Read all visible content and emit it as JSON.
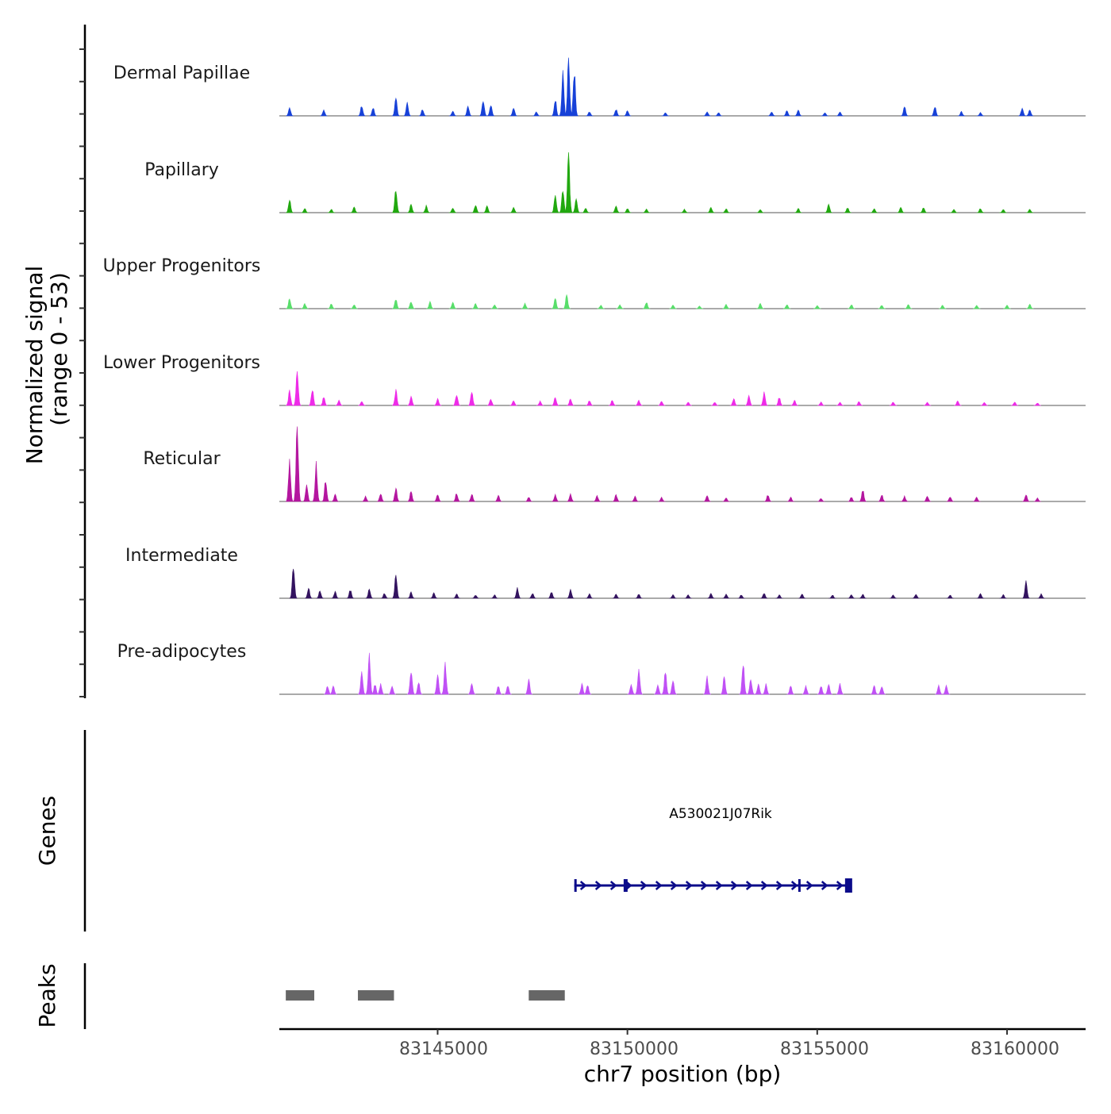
{
  "chart_data": {
    "type": "area",
    "region": {
      "chromosome": "chr7",
      "start": 83140830,
      "end": 83162070
    },
    "signal_axis_label": "Normalized signal",
    "signal_axis_range_label": "(range 0 - 53)",
    "ylim": [
      0,
      53
    ],
    "xlabel": "chr7 position (bp)",
    "x_ticks": [
      "83145000",
      "83150000",
      "83155000",
      "83160000"
    ],
    "x_tick_values": [
      83145000,
      83150000,
      83155000,
      83160000
    ],
    "tracks": [
      {
        "name": "Dermal Papillae",
        "color": "#1741d8",
        "peaks": [
          [
            83141100,
            10
          ],
          [
            83142000,
            7
          ],
          [
            83143000,
            12
          ],
          [
            83143300,
            10
          ],
          [
            83143900,
            22
          ],
          [
            83144200,
            15
          ],
          [
            83144600,
            8
          ],
          [
            83145400,
            6
          ],
          [
            83145800,
            12
          ],
          [
            83146200,
            20
          ],
          [
            83146400,
            14
          ],
          [
            83147000,
            10
          ],
          [
            83147600,
            5
          ],
          [
            83148100,
            20
          ],
          [
            83148300,
            50
          ],
          [
            83148450,
            64
          ],
          [
            83148600,
            54
          ],
          [
            83149000,
            5
          ],
          [
            83149700,
            8
          ],
          [
            83150000,
            6
          ],
          [
            83151000,
            4
          ],
          [
            83152100,
            5
          ],
          [
            83152400,
            4
          ],
          [
            83153800,
            5
          ],
          [
            83154200,
            6
          ],
          [
            83154500,
            7
          ],
          [
            83155200,
            4
          ],
          [
            83155600,
            5
          ],
          [
            83157300,
            12
          ],
          [
            83158100,
            12
          ],
          [
            83158800,
            5
          ],
          [
            83159300,
            4
          ],
          [
            83160400,
            10
          ],
          [
            83160600,
            8
          ]
        ]
      },
      {
        "name": "Papillary",
        "color": "#21a80f",
        "peaks": [
          [
            83141100,
            15
          ],
          [
            83141500,
            5
          ],
          [
            83142200,
            4
          ],
          [
            83142800,
            7
          ],
          [
            83143900,
            28
          ],
          [
            83144300,
            10
          ],
          [
            83144700,
            8
          ],
          [
            83145400,
            6
          ],
          [
            83146000,
            10
          ],
          [
            83146300,
            8
          ],
          [
            83147000,
            6
          ],
          [
            83148100,
            22
          ],
          [
            83148300,
            28
          ],
          [
            83148450,
            70
          ],
          [
            83148650,
            18
          ],
          [
            83148900,
            6
          ],
          [
            83149700,
            8
          ],
          [
            83150000,
            5
          ],
          [
            83150500,
            4
          ],
          [
            83151500,
            4
          ],
          [
            83152200,
            6
          ],
          [
            83152600,
            5
          ],
          [
            83153500,
            4
          ],
          [
            83154500,
            5
          ],
          [
            83155300,
            10
          ],
          [
            83155800,
            6
          ],
          [
            83156500,
            5
          ],
          [
            83157200,
            6
          ],
          [
            83157800,
            6
          ],
          [
            83158600,
            4
          ],
          [
            83159300,
            5
          ],
          [
            83159900,
            4
          ],
          [
            83160600,
            4
          ]
        ]
      },
      {
        "name": "Upper Progenitors",
        "color": "#58de6a",
        "peaks": [
          [
            83141100,
            12
          ],
          [
            83141500,
            6
          ],
          [
            83142200,
            6
          ],
          [
            83142800,
            5
          ],
          [
            83143900,
            12
          ],
          [
            83144300,
            9
          ],
          [
            83144800,
            8
          ],
          [
            83145400,
            7
          ],
          [
            83146000,
            6
          ],
          [
            83146500,
            5
          ],
          [
            83147300,
            6
          ],
          [
            83148100,
            12
          ],
          [
            83148400,
            16
          ],
          [
            83149300,
            4
          ],
          [
            83149800,
            5
          ],
          [
            83150500,
            8
          ],
          [
            83151200,
            4
          ],
          [
            83151900,
            3
          ],
          [
            83152600,
            5
          ],
          [
            83153500,
            6
          ],
          [
            83154200,
            5
          ],
          [
            83155000,
            4
          ],
          [
            83155900,
            5
          ],
          [
            83156700,
            4
          ],
          [
            83157400,
            5
          ],
          [
            83158300,
            4
          ],
          [
            83159200,
            4
          ],
          [
            83160000,
            4
          ],
          [
            83160600,
            5
          ]
        ]
      },
      {
        "name": "Lower Progenitors",
        "color": "#ee2be8",
        "peaks": [
          [
            83141100,
            18
          ],
          [
            83141300,
            40
          ],
          [
            83141700,
            20
          ],
          [
            83142000,
            10
          ],
          [
            83142400,
            6
          ],
          [
            83143000,
            5
          ],
          [
            83143900,
            18
          ],
          [
            83144300,
            10
          ],
          [
            83145000,
            8
          ],
          [
            83145500,
            14
          ],
          [
            83145900,
            16
          ],
          [
            83146400,
            8
          ],
          [
            83147000,
            6
          ],
          [
            83147700,
            5
          ],
          [
            83148100,
            10
          ],
          [
            83148500,
            8
          ],
          [
            83149000,
            6
          ],
          [
            83149600,
            6
          ],
          [
            83150300,
            6
          ],
          [
            83150900,
            5
          ],
          [
            83151600,
            4
          ],
          [
            83152300,
            4
          ],
          [
            83152800,
            8
          ],
          [
            83153200,
            12
          ],
          [
            83153600,
            15
          ],
          [
            83154000,
            10
          ],
          [
            83154400,
            6
          ],
          [
            83155100,
            4
          ],
          [
            83155600,
            4
          ],
          [
            83156100,
            5
          ],
          [
            83157000,
            4
          ],
          [
            83157900,
            4
          ],
          [
            83158700,
            5
          ],
          [
            83159400,
            4
          ],
          [
            83160200,
            4
          ],
          [
            83160800,
            3
          ]
        ]
      },
      {
        "name": "Reticular",
        "color": "#b4169f",
        "peaks": [
          [
            83141100,
            48
          ],
          [
            83141300,
            100
          ],
          [
            83141550,
            20
          ],
          [
            83141800,
            45
          ],
          [
            83142050,
            25
          ],
          [
            83142300,
            8
          ],
          [
            83143100,
            6
          ],
          [
            83143500,
            10
          ],
          [
            83143900,
            16
          ],
          [
            83144300,
            12
          ],
          [
            83145000,
            8
          ],
          [
            83145500,
            10
          ],
          [
            83145900,
            9
          ],
          [
            83146600,
            7
          ],
          [
            83147400,
            5
          ],
          [
            83148100,
            8
          ],
          [
            83148500,
            9
          ],
          [
            83149200,
            7
          ],
          [
            83149700,
            8
          ],
          [
            83150200,
            6
          ],
          [
            83150900,
            5
          ],
          [
            83152100,
            7
          ],
          [
            83152600,
            4
          ],
          [
            83153700,
            8
          ],
          [
            83154300,
            5
          ],
          [
            83155100,
            4
          ],
          [
            83155900,
            5
          ],
          [
            83156200,
            14
          ],
          [
            83156700,
            8
          ],
          [
            83157300,
            6
          ],
          [
            83157900,
            7
          ],
          [
            83158500,
            6
          ],
          [
            83159200,
            5
          ],
          [
            83160500,
            8
          ],
          [
            83160800,
            4
          ]
        ]
      },
      {
        "name": "Intermediate",
        "color": "#33135f",
        "peaks": [
          [
            83141200,
            40
          ],
          [
            83141600,
            12
          ],
          [
            83141900,
            9
          ],
          [
            83142300,
            8
          ],
          [
            83142700,
            10
          ],
          [
            83143200,
            12
          ],
          [
            83143600,
            6
          ],
          [
            83143900,
            28
          ],
          [
            83144300,
            7
          ],
          [
            83144900,
            6
          ],
          [
            83145500,
            5
          ],
          [
            83146000,
            4
          ],
          [
            83146500,
            4
          ],
          [
            83147100,
            12
          ],
          [
            83147500,
            6
          ],
          [
            83148000,
            8
          ],
          [
            83148500,
            10
          ],
          [
            83149000,
            5
          ],
          [
            83149700,
            5
          ],
          [
            83150300,
            5
          ],
          [
            83151200,
            4
          ],
          [
            83151600,
            4
          ],
          [
            83152200,
            6
          ],
          [
            83152600,
            5
          ],
          [
            83153000,
            4
          ],
          [
            83153600,
            6
          ],
          [
            83154000,
            4
          ],
          [
            83154600,
            5
          ],
          [
            83155400,
            4
          ],
          [
            83155900,
            4
          ],
          [
            83156200,
            5
          ],
          [
            83157000,
            4
          ],
          [
            83157600,
            5
          ],
          [
            83158500,
            4
          ],
          [
            83159300,
            6
          ],
          [
            83159900,
            4
          ],
          [
            83160500,
            20
          ],
          [
            83160900,
            5
          ]
        ]
      },
      {
        "name": "Pre-adipocytes",
        "color": "#c051f5",
        "peaks": [
          [
            83142100,
            10
          ],
          [
            83142250,
            10
          ],
          [
            83143000,
            25
          ],
          [
            83143200,
            45
          ],
          [
            83143350,
            12
          ],
          [
            83143500,
            12
          ],
          [
            83143800,
            10
          ],
          [
            83144300,
            30
          ],
          [
            83144500,
            14
          ],
          [
            83145000,
            25
          ],
          [
            83145200,
            35
          ],
          [
            83145900,
            14
          ],
          [
            83146600,
            10
          ],
          [
            83146850,
            10
          ],
          [
            83147400,
            18
          ],
          [
            83148800,
            12
          ],
          [
            83148950,
            12
          ],
          [
            83150100,
            12
          ],
          [
            83150300,
            30
          ],
          [
            83150800,
            12
          ],
          [
            83151000,
            28
          ],
          [
            83151200,
            18
          ],
          [
            83152100,
            20
          ],
          [
            83152550,
            22
          ],
          [
            83153050,
            40
          ],
          [
            83153250,
            18
          ],
          [
            83153450,
            12
          ],
          [
            83153650,
            12
          ],
          [
            83154300,
            10
          ],
          [
            83154700,
            10
          ],
          [
            83155100,
            10
          ],
          [
            83155300,
            12
          ],
          [
            83155600,
            12
          ],
          [
            83156500,
            10
          ],
          [
            83156700,
            10
          ],
          [
            83158200,
            10
          ],
          [
            83158400,
            10
          ]
        ]
      }
    ],
    "genes_track_label": "Genes",
    "gene": {
      "name": "A530021J07Rik",
      "start": 83148600,
      "end": 83155900,
      "strand": "+"
    },
    "peaks_track_label": "Peaks",
    "peak_regions": [
      [
        83141000,
        83141750
      ],
      [
        83142900,
        83143850
      ],
      [
        83147400,
        83148350
      ]
    ]
  }
}
